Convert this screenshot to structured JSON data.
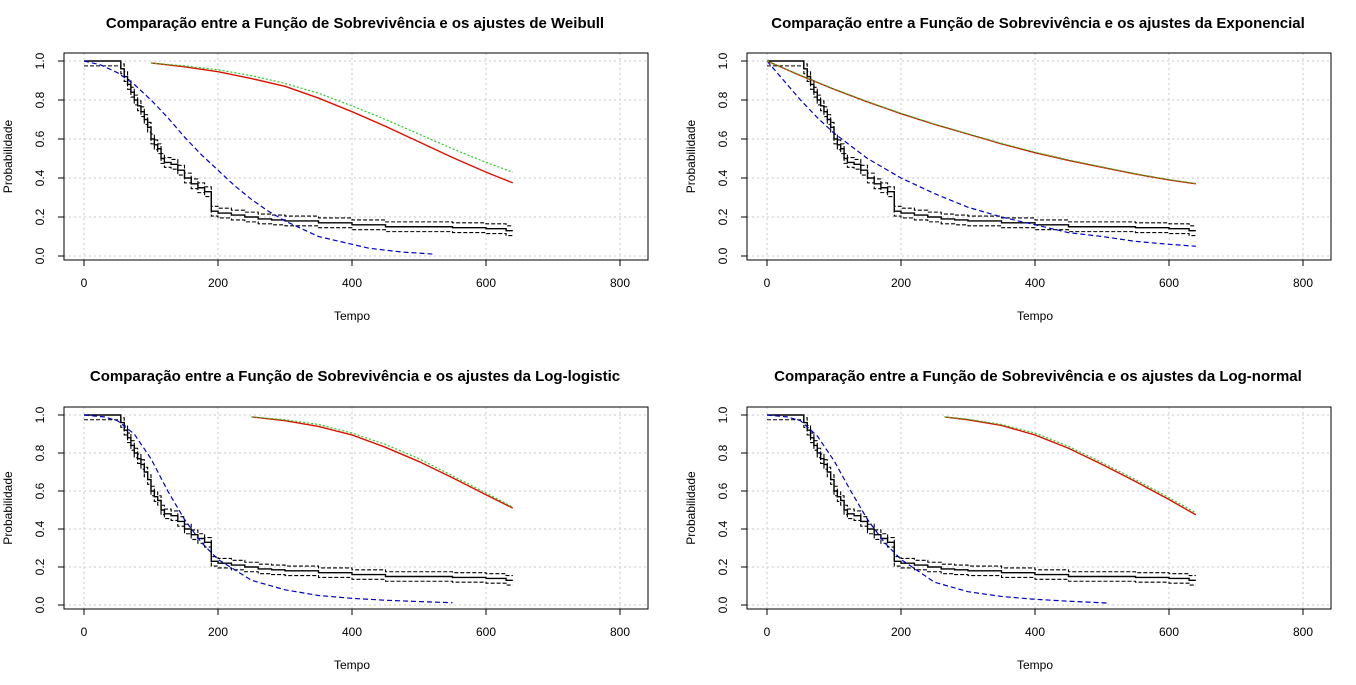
{
  "colors": {
    "km": "#000000",
    "ci": "#000000",
    "fit_blue": "#0000cc",
    "fit_red": "#dd1100",
    "fit_green": "#22cc22",
    "grid": "#c8c8c8"
  },
  "chart_data": [
    {
      "type": "line",
      "title": "Comparação entre a Função de Sobrevivência e os ajustes de Weibull",
      "xlabel": "Tempo",
      "ylabel": "Probabilidade",
      "xlim": [
        0,
        800
      ],
      "ylim": [
        0,
        1
      ],
      "xticks": [
        "0",
        "200",
        "400",
        "600",
        "800"
      ],
      "yticks": [
        "0.0",
        "0.2",
        "0.4",
        "0.6",
        "0.8",
        "1.0"
      ],
      "grid": true,
      "series": [
        {
          "role": "blue",
          "x": [
            0,
            25,
            50,
            75,
            100,
            125,
            150,
            175,
            200,
            225,
            250,
            275,
            300,
            325,
            350,
            375,
            400,
            425,
            450,
            475,
            500,
            520
          ],
          "y": [
            1.0,
            0.98,
            0.94,
            0.88,
            0.8,
            0.71,
            0.61,
            0.52,
            0.44,
            0.36,
            0.29,
            0.23,
            0.18,
            0.14,
            0.1,
            0.08,
            0.06,
            0.04,
            0.03,
            0.02,
            0.015,
            0.01
          ]
        },
        {
          "role": "red",
          "x": [
            100,
            150,
            200,
            250,
            300,
            350,
            400,
            450,
            500,
            550,
            600,
            640
          ],
          "y": [
            0.99,
            0.97,
            0.945,
            0.91,
            0.87,
            0.81,
            0.74,
            0.665,
            0.585,
            0.505,
            0.43,
            0.375
          ]
        },
        {
          "role": "green",
          "x": [
            100,
            150,
            200,
            250,
            300,
            350,
            400,
            450,
            500,
            550,
            600,
            640
          ],
          "y": [
            0.99,
            0.975,
            0.955,
            0.925,
            0.885,
            0.835,
            0.77,
            0.7,
            0.625,
            0.55,
            0.48,
            0.43
          ]
        }
      ]
    },
    {
      "type": "line",
      "title": "Comparação entre a Função de Sobrevivência e os ajustes da Exponencial",
      "xlabel": "Tempo",
      "ylabel": "Probabilidade",
      "xlim": [
        0,
        800
      ],
      "ylim": [
        0,
        1
      ],
      "xticks": [
        "0",
        "200",
        "400",
        "600",
        "800"
      ],
      "yticks": [
        "0.0",
        "0.2",
        "0.4",
        "0.6",
        "0.8",
        "1.0"
      ],
      "grid": true,
      "series": [
        {
          "role": "blue",
          "x": [
            0,
            25,
            50,
            75,
            100,
            150,
            200,
            250,
            300,
            350,
            400,
            450,
            500,
            550,
            600,
            640
          ],
          "y": [
            1.0,
            0.9,
            0.8,
            0.71,
            0.63,
            0.5,
            0.4,
            0.32,
            0.25,
            0.2,
            0.16,
            0.12,
            0.1,
            0.075,
            0.06,
            0.05
          ]
        },
        {
          "role": "red",
          "x": [
            0,
            50,
            100,
            150,
            200,
            250,
            300,
            350,
            400,
            450,
            500,
            550,
            600,
            640
          ],
          "y": [
            1.0,
            0.925,
            0.855,
            0.79,
            0.73,
            0.675,
            0.625,
            0.575,
            0.53,
            0.49,
            0.455,
            0.42,
            0.39,
            0.37
          ]
        },
        {
          "role": "green",
          "x": [
            0,
            50,
            100,
            150,
            200,
            250,
            300,
            350,
            400,
            450,
            500,
            550,
            600,
            640
          ],
          "y": [
            1.0,
            0.927,
            0.857,
            0.792,
            0.732,
            0.677,
            0.627,
            0.578,
            0.533,
            0.493,
            0.457,
            0.422,
            0.392,
            0.372
          ]
        }
      ]
    },
    {
      "type": "line",
      "title": "Comparação entre a Função de Sobrevivência e os ajustes da Log-logistic",
      "xlabel": "Tempo",
      "ylabel": "Probabilidade",
      "xlim": [
        0,
        800
      ],
      "ylim": [
        0,
        1
      ],
      "xticks": [
        "0",
        "200",
        "400",
        "600",
        "800"
      ],
      "yticks": [
        "0.0",
        "0.2",
        "0.4",
        "0.6",
        "0.8",
        "1.0"
      ],
      "grid": true,
      "series": [
        {
          "role": "blue",
          "x": [
            0,
            30,
            50,
            75,
            100,
            125,
            150,
            175,
            200,
            250,
            300,
            350,
            400,
            450,
            500,
            550
          ],
          "y": [
            1.0,
            0.99,
            0.97,
            0.9,
            0.77,
            0.6,
            0.45,
            0.33,
            0.24,
            0.13,
            0.08,
            0.05,
            0.035,
            0.025,
            0.018,
            0.012
          ]
        },
        {
          "role": "red",
          "x": [
            250,
            300,
            350,
            400,
            450,
            500,
            550,
            600,
            640
          ],
          "y": [
            0.99,
            0.97,
            0.94,
            0.895,
            0.83,
            0.755,
            0.67,
            0.58,
            0.51
          ]
        },
        {
          "role": "green",
          "x": [
            250,
            300,
            350,
            400,
            450,
            500,
            550,
            600,
            640
          ],
          "y": [
            0.99,
            0.975,
            0.95,
            0.905,
            0.845,
            0.77,
            0.68,
            0.59,
            0.515
          ]
        }
      ]
    },
    {
      "type": "line",
      "title": "Comparação entre a Função de Sobrevivência e os ajustes da Log-normal",
      "xlabel": "Tempo",
      "ylabel": "Probabilidade",
      "xlim": [
        0,
        800
      ],
      "ylim": [
        0,
        1
      ],
      "xticks": [
        "0",
        "200",
        "400",
        "600",
        "800"
      ],
      "yticks": [
        "0.0",
        "0.2",
        "0.4",
        "0.6",
        "0.8",
        "1.0"
      ],
      "grid": true,
      "series": [
        {
          "role": "blue",
          "x": [
            0,
            30,
            50,
            75,
            100,
            125,
            150,
            175,
            200,
            250,
            300,
            350,
            400,
            450,
            510
          ],
          "y": [
            1.0,
            0.99,
            0.97,
            0.89,
            0.76,
            0.6,
            0.45,
            0.33,
            0.24,
            0.12,
            0.07,
            0.045,
            0.03,
            0.02,
            0.01
          ]
        },
        {
          "role": "red",
          "x": [
            265,
            300,
            350,
            400,
            450,
            500,
            550,
            600,
            640
          ],
          "y": [
            0.99,
            0.975,
            0.945,
            0.895,
            0.825,
            0.74,
            0.65,
            0.555,
            0.475
          ]
        },
        {
          "role": "green",
          "x": [
            265,
            300,
            350,
            400,
            450,
            500,
            550,
            600,
            640
          ],
          "y": [
            0.99,
            0.978,
            0.95,
            0.905,
            0.835,
            0.75,
            0.66,
            0.565,
            0.485
          ]
        }
      ]
    }
  ],
  "km_step": {
    "x": [
      0,
      55,
      60,
      65,
      70,
      75,
      80,
      85,
      90,
      95,
      100,
      105,
      110,
      115,
      120,
      130,
      140,
      150,
      160,
      170,
      180,
      190,
      200,
      220,
      240,
      260,
      280,
      300,
      350,
      400,
      450,
      500,
      550,
      600,
      630,
      640
    ],
    "y": [
      1.0,
      0.96,
      0.92,
      0.88,
      0.84,
      0.8,
      0.77,
      0.74,
      0.7,
      0.66,
      0.6,
      0.57,
      0.55,
      0.5,
      0.48,
      0.47,
      0.44,
      0.4,
      0.37,
      0.35,
      0.33,
      0.23,
      0.22,
      0.21,
      0.2,
      0.19,
      0.185,
      0.18,
      0.17,
      0.16,
      0.15,
      0.15,
      0.145,
      0.14,
      0.13,
      0.13
    ],
    "ci_offset": 0.025
  }
}
